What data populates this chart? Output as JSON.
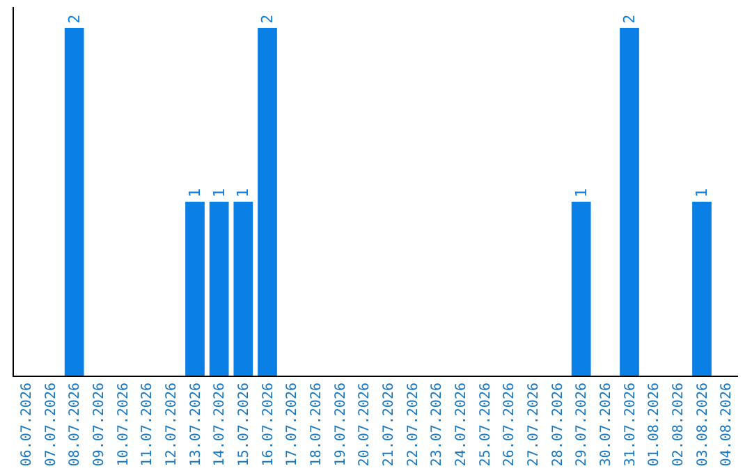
{
  "chart_data": {
    "type": "bar",
    "categories": [
      "06.07.2026",
      "07.07.2026",
      "08.07.2026",
      "09.07.2026",
      "10.07.2026",
      "11.07.2026",
      "12.07.2026",
      "13.07.2026",
      "14.07.2026",
      "15.07.2026",
      "16.07.2026",
      "17.07.2026",
      "18.07.2026",
      "19.07.2026",
      "20.07.2026",
      "21.07.2026",
      "22.07.2026",
      "23.07.2026",
      "24.07.2026",
      "25.07.2026",
      "26.07.2026",
      "27.07.2026",
      "28.07.2026",
      "29.07.2026",
      "30.07.2026",
      "31.07.2026",
      "01.08.2026",
      "02.08.2026",
      "03.08.2026",
      "04.08.2026"
    ],
    "values": [
      0,
      0,
      2,
      0,
      0,
      0,
      0,
      1,
      1,
      1,
      2,
      0,
      0,
      0,
      0,
      0,
      0,
      0,
      0,
      0,
      0,
      0,
      0,
      1,
      0,
      2,
      0,
      0,
      1,
      0
    ],
    "color": "#0a7fe6",
    "ylim": [
      0,
      2.12
    ],
    "value_labels": [
      null,
      null,
      "2",
      null,
      null,
      null,
      null,
      "1",
      "1",
      "1",
      "2",
      null,
      null,
      null,
      null,
      null,
      null,
      null,
      null,
      null,
      null,
      null,
      null,
      "1",
      null,
      "2",
      null,
      null,
      "1",
      null
    ],
    "tick_labels": "x"
  }
}
